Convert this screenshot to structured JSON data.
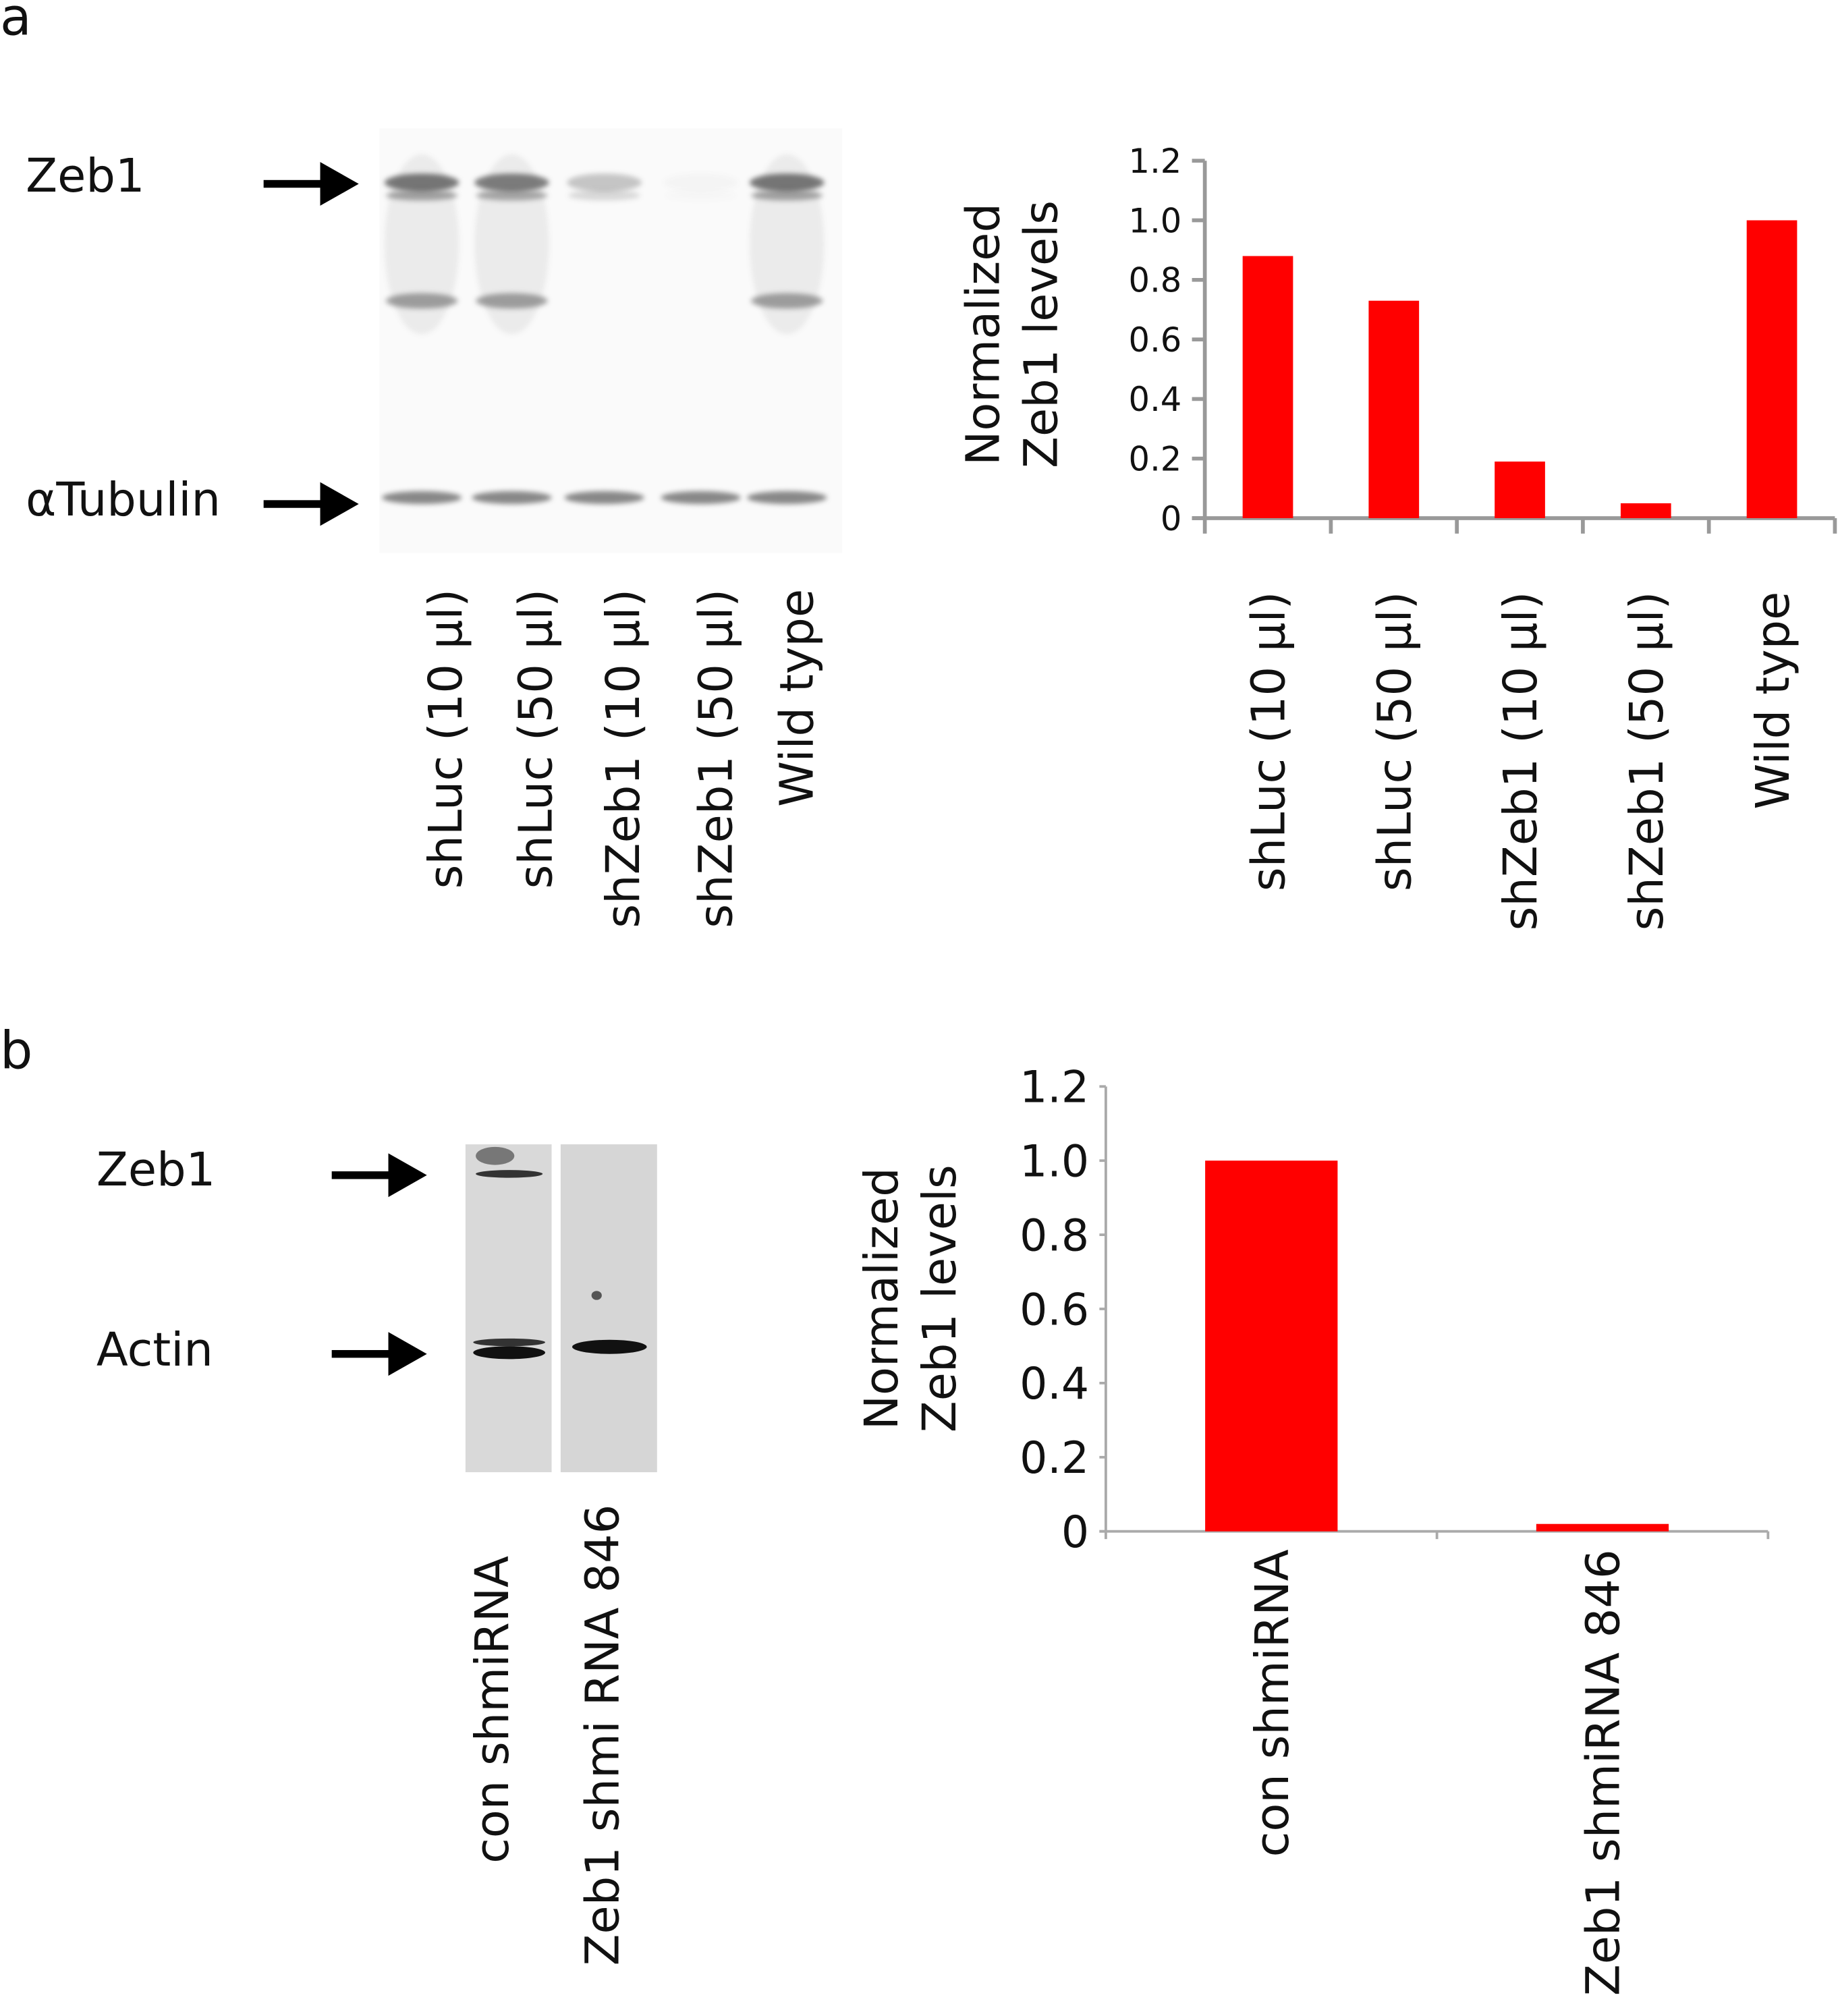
{
  "panel_a": {
    "letter": "a",
    "blot": {
      "labels": {
        "zeb1": "Zeb1",
        "tubulin": "αTubulin"
      },
      "lanes": [
        "shLuc (10 µl)",
        "shLuc (50 µl)",
        "shZeb1 (10 µl)",
        "shZeb1 (50 µl)",
        "Wild type"
      ],
      "zeb1_band_intensity": [
        0.85,
        0.8,
        0.35,
        0.04,
        0.85
      ]
    }
  },
  "panel_b": {
    "letter": "b",
    "blot": {
      "labels": {
        "zeb1": "Zeb1",
        "actin": "Actin"
      },
      "lanes": [
        "con shmiRNA",
        "Zeb1 shmi RNA 846"
      ]
    }
  },
  "chart_data": [
    {
      "type": "bar",
      "title": "",
      "ylabel_lines": [
        "Normalized",
        "Zeb1 levels"
      ],
      "xlabel": "",
      "categories": [
        "shLuc (10 µl)",
        "shLuc (50 µl)",
        "shZeb1 (10 µl)",
        "shZeb1 (50 µl)",
        "Wild type"
      ],
      "values": [
        0.88,
        0.73,
        0.19,
        0.05,
        1.0
      ],
      "ylim": [
        0,
        1.2
      ],
      "yticks": [
        "0",
        "0.2",
        "0.4",
        "0.6",
        "0.8",
        "1.0",
        "1.2"
      ],
      "grid": false,
      "bar_color": "#ff0000",
      "axis_color": "#999999"
    },
    {
      "type": "bar",
      "title": "",
      "ylabel_lines": [
        "Normalized",
        "Zeb1 levels"
      ],
      "xlabel": "",
      "categories": [
        "con  shmiRNA",
        "Zeb1 shmiRNA 846"
      ],
      "values": [
        1.0,
        0.02
      ],
      "ylim": [
        0,
        1.2
      ],
      "yticks": [
        "0",
        "0.2",
        "0.4",
        "0.6",
        "0.8",
        "1.0",
        "1.2"
      ],
      "grid": false,
      "bar_color": "#ff0000",
      "axis_color": "#aaaaaa"
    }
  ]
}
